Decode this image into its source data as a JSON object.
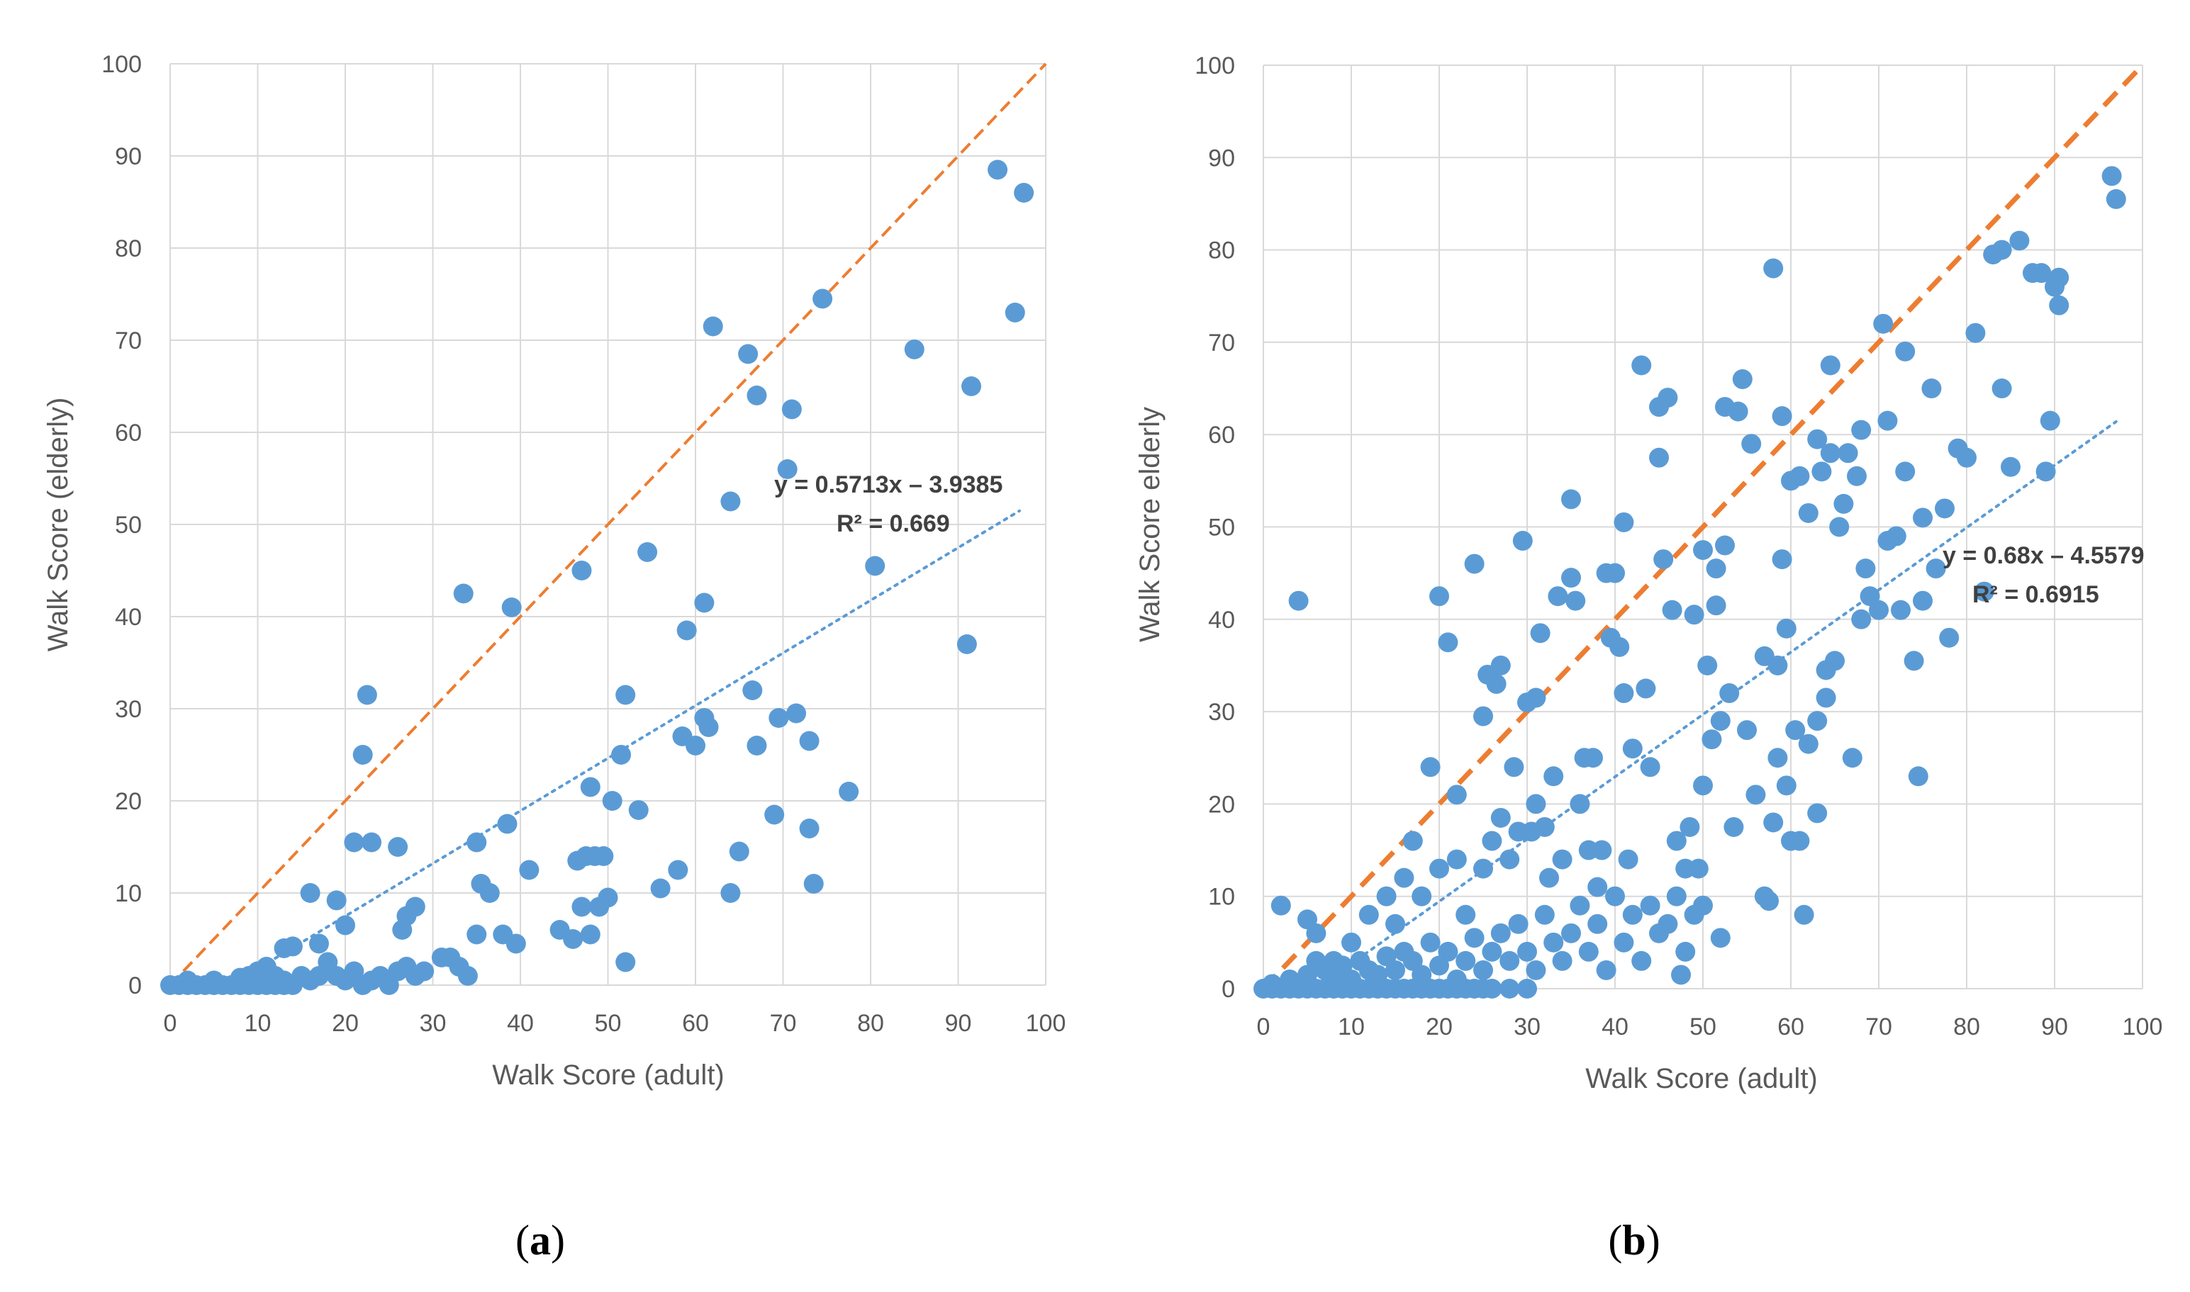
{
  "chart_data": [
    {
      "type": "scatter",
      "panel_label": "a",
      "xlabel": "Walk Score (adult)",
      "ylabel": "Walk Score (elderly)",
      "xlim": [
        0,
        100
      ],
      "ylim": [
        0,
        100
      ],
      "xticks": [
        "0",
        "10",
        "20",
        "30",
        "40",
        "50",
        "60",
        "70",
        "80",
        "90",
        "100"
      ],
      "yticks": [
        "0",
        "10",
        "20",
        "30",
        "40",
        "50",
        "60",
        "70",
        "80",
        "90",
        "100"
      ],
      "grid": true,
      "equation": "y = 0.5713x – 3.9385",
      "r2": "R² = 0.669",
      "trend": {
        "slope": 0.5713,
        "intercept": -3.9385,
        "x_range": [
          7,
          97
        ]
      },
      "identity_line": {
        "x": [
          0,
          100
        ],
        "y": [
          0,
          100
        ]
      },
      "colors": {
        "points": "#5b9bd5",
        "identity": "#ed7d31",
        "trend": "#5b9bd5"
      },
      "points": [
        [
          0,
          0
        ],
        [
          1,
          0
        ],
        [
          2,
          0
        ],
        [
          3,
          0
        ],
        [
          4,
          0
        ],
        [
          5,
          0
        ],
        [
          6,
          0
        ],
        [
          7,
          0
        ],
        [
          8,
          0
        ],
        [
          9,
          0
        ],
        [
          10,
          0
        ],
        [
          11,
          0
        ],
        [
          12,
          0
        ],
        [
          13,
          0
        ],
        [
          14,
          0
        ],
        [
          2,
          0.5
        ],
        [
          5,
          0.5
        ],
        [
          8,
          0.8
        ],
        [
          9,
          1
        ],
        [
          10,
          1.5
        ],
        [
          11,
          2
        ],
        [
          12,
          1
        ],
        [
          13,
          0.5
        ],
        [
          15,
          1
        ],
        [
          16,
          0.5
        ],
        [
          17,
          1
        ],
        [
          18,
          2.5
        ],
        [
          19,
          1
        ],
        [
          20,
          0.5
        ],
        [
          21,
          1.5
        ],
        [
          22,
          0
        ],
        [
          23,
          0.5
        ],
        [
          24,
          1
        ],
        [
          25,
          0
        ],
        [
          26,
          1.5
        ],
        [
          27,
          2
        ],
        [
          28,
          1
        ],
        [
          29,
          1.5
        ],
        [
          31,
          3
        ],
        [
          33,
          2
        ],
        [
          34,
          1
        ],
        [
          13,
          4
        ],
        [
          14,
          4.2
        ],
        [
          16,
          10
        ],
        [
          17,
          4.5
        ],
        [
          19,
          9.2
        ],
        [
          20,
          6.5
        ],
        [
          21,
          15.5
        ],
        [
          22,
          25
        ],
        [
          22.5,
          31.5
        ],
        [
          23,
          15.5
        ],
        [
          26,
          15
        ],
        [
          26.5,
          6
        ],
        [
          27,
          7.5
        ],
        [
          28,
          8.5
        ],
        [
          32,
          3
        ],
        [
          33.5,
          42.5
        ],
        [
          35,
          15.5
        ],
        [
          35,
          5.5
        ],
        [
          35.5,
          11
        ],
        [
          36.5,
          10
        ],
        [
          38,
          5.5
        ],
        [
          38.5,
          17.5
        ],
        [
          39,
          41
        ],
        [
          39.5,
          4.5
        ],
        [
          41,
          12.5
        ],
        [
          44.5,
          6
        ],
        [
          46,
          5
        ],
        [
          46.5,
          13.5
        ],
        [
          47,
          45
        ],
        [
          47,
          8.5
        ],
        [
          47.5,
          14
        ],
        [
          48,
          21.5
        ],
        [
          48,
          5.5
        ],
        [
          48.5,
          14
        ],
        [
          49,
          8.5
        ],
        [
          49.5,
          14
        ],
        [
          50,
          9.5
        ],
        [
          50.5,
          20
        ],
        [
          51.5,
          25
        ],
        [
          52,
          31.5
        ],
        [
          52,
          2.5
        ],
        [
          53.5,
          19
        ],
        [
          54.5,
          47
        ],
        [
          56,
          10.5
        ],
        [
          58,
          12.5
        ],
        [
          58.5,
          27
        ],
        [
          59,
          38.5
        ],
        [
          60,
          26
        ],
        [
          61,
          41.5
        ],
        [
          61,
          29
        ],
        [
          61.5,
          28
        ],
        [
          62,
          71.5
        ],
        [
          64,
          52.5
        ],
        [
          64,
          10
        ],
        [
          65,
          14.5
        ],
        [
          66,
          68.5
        ],
        [
          66.5,
          32
        ],
        [
          67,
          26
        ],
        [
          67,
          64
        ],
        [
          69,
          18.5
        ],
        [
          69.5,
          29
        ],
        [
          70.5,
          56
        ],
        [
          71,
          62.5
        ],
        [
          71.5,
          29.5
        ],
        [
          73,
          26.5
        ],
        [
          73,
          17
        ],
        [
          73.5,
          11
        ],
        [
          74.5,
          74.5
        ],
        [
          77.5,
          21
        ],
        [
          80.5,
          45.5
        ],
        [
          85,
          69
        ],
        [
          91,
          37
        ],
        [
          91.5,
          65
        ],
        [
          94.5,
          88.5
        ],
        [
          96.5,
          73
        ],
        [
          97.5,
          86
        ]
      ]
    },
    {
      "type": "scatter",
      "panel_label": "b",
      "xlabel": "Walk Score (adult)",
      "ylabel": "Walk Score elderly",
      "xlim": [
        0,
        100
      ],
      "ylim": [
        0,
        100
      ],
      "xticks": [
        "0",
        "10",
        "20",
        "30",
        "40",
        "50",
        "60",
        "70",
        "80",
        "90",
        "100"
      ],
      "yticks": [
        "0",
        "10",
        "20",
        "30",
        "40",
        "50",
        "60",
        "70",
        "80",
        "90",
        "100"
      ],
      "grid": true,
      "equation": "y = 0.68x – 4.5579",
      "r2": "R² = 0.6915",
      "trend": {
        "slope": 0.68,
        "intercept": -4.5579,
        "x_range": [
          6,
          97
        ]
      },
      "identity_line": {
        "x": [
          0,
          100
        ],
        "y": [
          0,
          100
        ]
      },
      "colors": {
        "points": "#5b9bd5",
        "identity": "#ed7d31",
        "trend": "#5b9bd5"
      },
      "points": [
        [
          0,
          0
        ],
        [
          1,
          0
        ],
        [
          2,
          0
        ],
        [
          3,
          0
        ],
        [
          4,
          0
        ],
        [
          5,
          0
        ],
        [
          6,
          0
        ],
        [
          7,
          0
        ],
        [
          8,
          0
        ],
        [
          9,
          0
        ],
        [
          10,
          0
        ],
        [
          11,
          0
        ],
        [
          12,
          0
        ],
        [
          13,
          0
        ],
        [
          14,
          0
        ],
        [
          15,
          0
        ],
        [
          16,
          0
        ],
        [
          17,
          0
        ],
        [
          18,
          0
        ],
        [
          19,
          0
        ],
        [
          20,
          0
        ],
        [
          21,
          0
        ],
        [
          22,
          0
        ],
        [
          23,
          0
        ],
        [
          24,
          0
        ],
        [
          25,
          0
        ],
        [
          26,
          0
        ],
        [
          28,
          0
        ],
        [
          30,
          0
        ],
        [
          1,
          0.5
        ],
        [
          3,
          1
        ],
        [
          5,
          1.5
        ],
        [
          6,
          3
        ],
        [
          7,
          2
        ],
        [
          8,
          1
        ],
        [
          9,
          2.5
        ],
        [
          10,
          1
        ],
        [
          11,
          3
        ],
        [
          12,
          2
        ],
        [
          13,
          1.5
        ],
        [
          14,
          3.5
        ],
        [
          15,
          2
        ],
        [
          16,
          4
        ],
        [
          17,
          3
        ],
        [
          18,
          1.5
        ],
        [
          19,
          5
        ],
        [
          20,
          2.5
        ],
        [
          21,
          4
        ],
        [
          22,
          1
        ],
        [
          23,
          3
        ],
        [
          24,
          5.5
        ],
        [
          25,
          2
        ],
        [
          26,
          4
        ],
        [
          27,
          6
        ],
        [
          28,
          3
        ],
        [
          29,
          7
        ],
        [
          30,
          4
        ],
        [
          31,
          2
        ],
        [
          32,
          8
        ],
        [
          33,
          5
        ],
        [
          34,
          3
        ],
        [
          35,
          6
        ],
        [
          36,
          9
        ],
        [
          37,
          4
        ],
        [
          38,
          7
        ],
        [
          39,
          2
        ],
        [
          40,
          10
        ],
        [
          41,
          5
        ],
        [
          42,
          8
        ],
        [
          43,
          3
        ],
        [
          44,
          9
        ],
        [
          45,
          6
        ],
        [
          46,
          7
        ],
        [
          47,
          10
        ],
        [
          48,
          4
        ],
        [
          49,
          8
        ],
        [
          50,
          9
        ],
        [
          2,
          9
        ],
        [
          4,
          42
        ],
        [
          5,
          7.5
        ],
        [
          6,
          6
        ],
        [
          8,
          3
        ],
        [
          10,
          5
        ],
        [
          12,
          8
        ],
        [
          14,
          10
        ],
        [
          15,
          7
        ],
        [
          16,
          12
        ],
        [
          17,
          16
        ],
        [
          18,
          10
        ],
        [
          19,
          24
        ],
        [
          20,
          13
        ],
        [
          20,
          42.5
        ],
        [
          21,
          37.5
        ],
        [
          22,
          14
        ],
        [
          22,
          21
        ],
        [
          23,
          8
        ],
        [
          24,
          46
        ],
        [
          25,
          13
        ],
        [
          25,
          29.5
        ],
        [
          25.5,
          34
        ],
        [
          26,
          16
        ],
        [
          26.5,
          33
        ],
        [
          27,
          18.5
        ],
        [
          27,
          35
        ],
        [
          28,
          14
        ],
        [
          28.5,
          24
        ],
        [
          29,
          17
        ],
        [
          29.5,
          48.5
        ],
        [
          30,
          31
        ],
        [
          30.5,
          17
        ],
        [
          31,
          20
        ],
        [
          31,
          31.5
        ],
        [
          31.5,
          38.5
        ],
        [
          32,
          17.5
        ],
        [
          32.5,
          12
        ],
        [
          33,
          23
        ],
        [
          33.5,
          42.5
        ],
        [
          34,
          14
        ],
        [
          35,
          53
        ],
        [
          35,
          44.5
        ],
        [
          35.5,
          42
        ],
        [
          36,
          20
        ],
        [
          36.5,
          25
        ],
        [
          37,
          15
        ],
        [
          37.5,
          25
        ],
        [
          38,
          11
        ],
        [
          38.5,
          15
        ],
        [
          39,
          45
        ],
        [
          39.5,
          38
        ],
        [
          40,
          45
        ],
        [
          40.5,
          37
        ],
        [
          41,
          50.5
        ],
        [
          41,
          32
        ],
        [
          41.5,
          14
        ],
        [
          42,
          26
        ],
        [
          43,
          67.5
        ],
        [
          43.5,
          32.5
        ],
        [
          44,
          24
        ],
        [
          45,
          57.5
        ],
        [
          45,
          63
        ],
        [
          45.5,
          46.5
        ],
        [
          46,
          64
        ],
        [
          46.5,
          41
        ],
        [
          47,
          16
        ],
        [
          47.5,
          1.5
        ],
        [
          48,
          13
        ],
        [
          48.5,
          17.5
        ],
        [
          49,
          40.5
        ],
        [
          49.5,
          13
        ],
        [
          50,
          22
        ],
        [
          50,
          47.5
        ],
        [
          50.5,
          35
        ],
        [
          51,
          27
        ],
        [
          51.5,
          41.5
        ],
        [
          51.5,
          45.5
        ],
        [
          52,
          5.5
        ],
        [
          52,
          29
        ],
        [
          52.5,
          48
        ],
        [
          52.5,
          63
        ],
        [
          53,
          32
        ],
        [
          53.5,
          17.5
        ],
        [
          54,
          62.5
        ],
        [
          54.5,
          66
        ],
        [
          55,
          28
        ],
        [
          55.5,
          59
        ],
        [
          56,
          21
        ],
        [
          57,
          36
        ],
        [
          57,
          10
        ],
        [
          57.5,
          9.5
        ],
        [
          58,
          18
        ],
        [
          58,
          78
        ],
        [
          58.5,
          25
        ],
        [
          58.5,
          35
        ],
        [
          59,
          46.5
        ],
        [
          59,
          62
        ],
        [
          59.5,
          22
        ],
        [
          59.5,
          39
        ],
        [
          60,
          16
        ],
        [
          60,
          55
        ],
        [
          60.5,
          28
        ],
        [
          61,
          55.5
        ],
        [
          61,
          16
        ],
        [
          61.5,
          8
        ],
        [
          62,
          26.5
        ],
        [
          62,
          51.5
        ],
        [
          63,
          19
        ],
        [
          63,
          29
        ],
        [
          63,
          59.5
        ],
        [
          63.5,
          56
        ],
        [
          64,
          31.5
        ],
        [
          64,
          34.5
        ],
        [
          64.5,
          58
        ],
        [
          64.5,
          67.5
        ],
        [
          65,
          35.5
        ],
        [
          65.5,
          50
        ],
        [
          66,
          52.5
        ],
        [
          66.5,
          58
        ],
        [
          67,
          25
        ],
        [
          67.5,
          55.5
        ],
        [
          68,
          60.5
        ],
        [
          68,
          40
        ],
        [
          68.5,
          45.5
        ],
        [
          69,
          42.5
        ],
        [
          70,
          41
        ],
        [
          70.5,
          72
        ],
        [
          71,
          61.5
        ],
        [
          71,
          48.5
        ],
        [
          72,
          49
        ],
        [
          72.5,
          41
        ],
        [
          73,
          69
        ],
        [
          73,
          56
        ],
        [
          74,
          35.5
        ],
        [
          74.5,
          23
        ],
        [
          75,
          51
        ],
        [
          75,
          42
        ],
        [
          76,
          65
        ],
        [
          76.5,
          45.5
        ],
        [
          77.5,
          52
        ],
        [
          78,
          38
        ],
        [
          79,
          58.5
        ],
        [
          80,
          57.5
        ],
        [
          81,
          71
        ],
        [
          82,
          43
        ],
        [
          83,
          79.5
        ],
        [
          84,
          80
        ],
        [
          84,
          65
        ],
        [
          85,
          56.5
        ],
        [
          86,
          81
        ],
        [
          87.5,
          77.5
        ],
        [
          88.5,
          77.5
        ],
        [
          89,
          56
        ],
        [
          89.5,
          61.5
        ],
        [
          90,
          76
        ],
        [
          90.5,
          74
        ],
        [
          90.5,
          77
        ],
        [
          96.5,
          88
        ],
        [
          97,
          85.5
        ]
      ]
    }
  ]
}
